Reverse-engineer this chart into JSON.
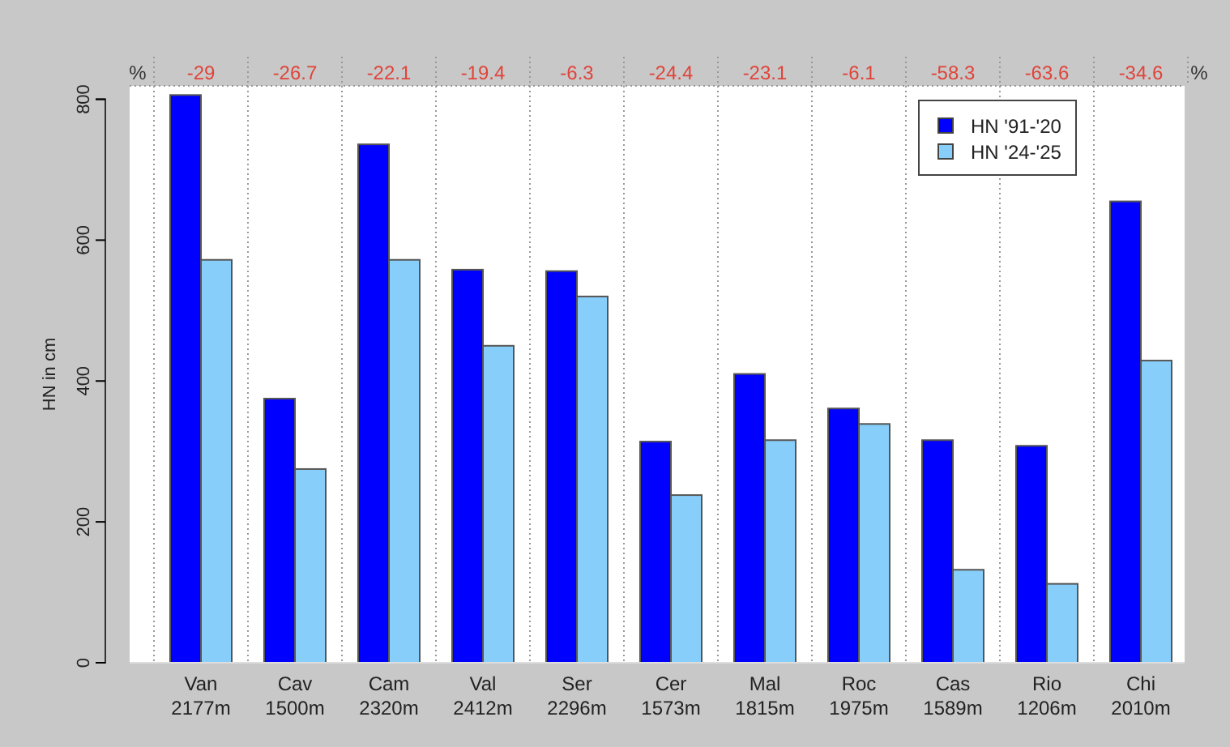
{
  "chart_data": {
    "type": "bar",
    "ylabel": "HN in cm",
    "categories": [
      "Van\n2177m",
      "Cav\n1500m",
      "Cam\n2320m",
      "Val\n2412m",
      "Ser\n2296m",
      "Cer\n1573m",
      "Mal\n1815m",
      "Roc\n1975m",
      "Cas\n1589m",
      "Rio\n1206m",
      "Chi\n2010m"
    ],
    "series": [
      {
        "name": "HN '91-'20",
        "color": "#0000ff",
        "values": [
          806,
          375,
          736,
          558,
          556,
          314,
          410,
          361,
          316,
          308,
          655
        ]
      },
      {
        "name": "HN '24-'25",
        "color": "#87cefa",
        "values": [
          572,
          275,
          572,
          450,
          520,
          238,
          316,
          339,
          132,
          112,
          429
        ]
      }
    ],
    "ylim": [
      0,
      819
    ],
    "yticks": [
      0,
      200,
      400,
      600,
      800
    ],
    "grid": "x",
    "legend": "top right",
    "annotations": [
      "%",
      "-29",
      "-26.7",
      "-22.1",
      "-19.4",
      "-6.3",
      "-24.4",
      "-23.1",
      "-6.1",
      "-58.3",
      "-63.6",
      "-34.6",
      "%"
    ]
  }
}
